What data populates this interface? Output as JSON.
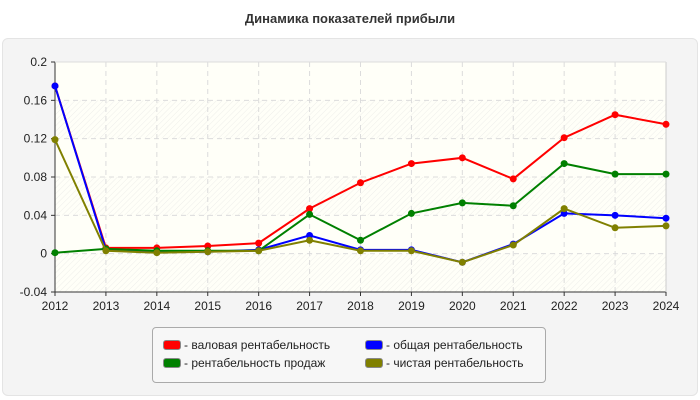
{
  "chart_data": {
    "type": "line",
    "title": "Динамика показателей прибыли",
    "xlabel": "",
    "ylabel": "",
    "x": [
      2012,
      2013,
      2014,
      2015,
      2016,
      2017,
      2018,
      2019,
      2020,
      2021,
      2022,
      2023,
      2024
    ],
    "ylim": [
      -0.04,
      0.2
    ],
    "yticks": [
      "-0.04",
      "0",
      "0.04",
      "0.08",
      "0.12",
      "0.16",
      "0.2"
    ],
    "grid": true,
    "legend_position": "bottom",
    "series": [
      {
        "name": "- валовая рентабельность",
        "color": "#ff0000",
        "values": [
          0.175,
          0.006,
          0.006,
          0.008,
          0.011,
          0.047,
          0.074,
          0.094,
          0.1,
          0.078,
          0.121,
          0.145,
          0.135
        ]
      },
      {
        "name": "- общая рентабельность",
        "color": "#0000ff",
        "values": [
          0.175,
          0.004,
          0.002,
          0.002,
          0.004,
          0.019,
          0.004,
          0.004,
          -0.009,
          0.01,
          0.042,
          0.04,
          0.037
        ]
      },
      {
        "name": "- рентабельность продаж",
        "color": "#008000",
        "values": [
          0.001,
          0.005,
          0.003,
          0.003,
          0.003,
          0.041,
          0.014,
          0.042,
          0.053,
          0.05,
          0.094,
          0.083,
          0.083
        ]
      },
      {
        "name": "- чистая рентабельность",
        "color": "#808000",
        "values": [
          0.119,
          0.003,
          0.001,
          0.002,
          0.003,
          0.014,
          0.003,
          0.003,
          -0.009,
          0.009,
          0.047,
          0.027,
          0.029
        ]
      }
    ]
  }
}
